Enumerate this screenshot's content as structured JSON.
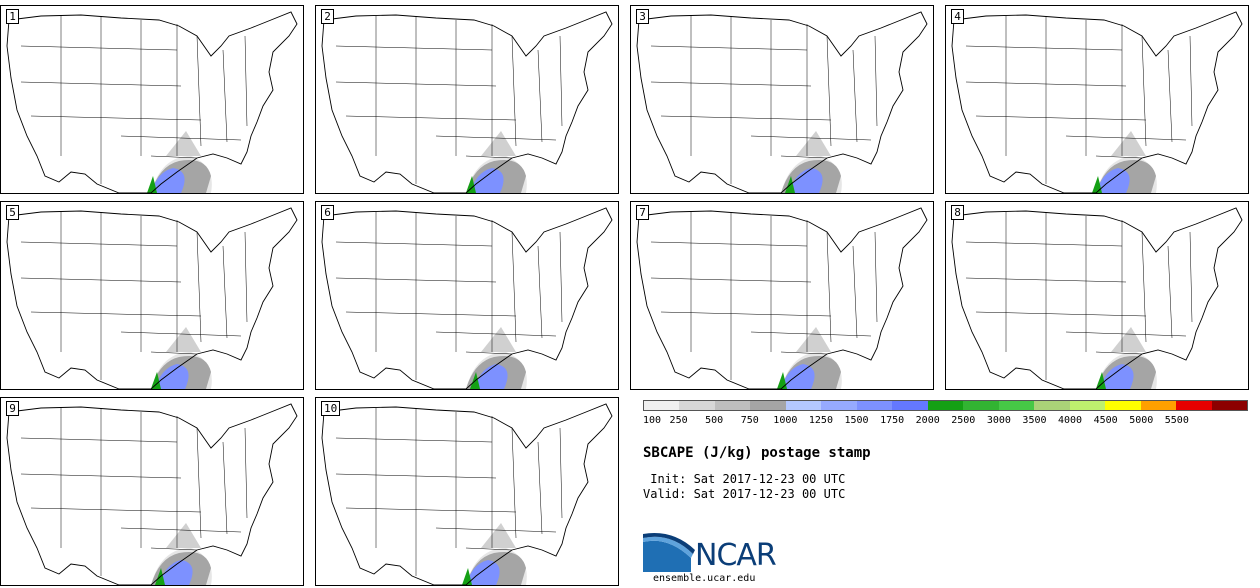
{
  "panels": [
    {
      "label": "1"
    },
    {
      "label": "2"
    },
    {
      "label": "3"
    },
    {
      "label": "4"
    },
    {
      "label": "5"
    },
    {
      "label": "6"
    },
    {
      "label": "7"
    },
    {
      "label": "8"
    },
    {
      "label": "9"
    },
    {
      "label": "10"
    }
  ],
  "legend": {
    "colors": [
      "#f0f0f0",
      "#d7d7d7",
      "#bebebe",
      "#a5a5a5",
      "#b4c8ff",
      "#96aaff",
      "#7d91ff",
      "#6478ff",
      "#14a014",
      "#32b432",
      "#46c846",
      "#aad278",
      "#bef06e",
      "#ffff00",
      "#ffa000",
      "#e60000",
      "#8c0000"
    ],
    "ticks": [
      "100",
      "250",
      "500",
      "750",
      "1000",
      "1250",
      "1500",
      "1750",
      "2000",
      "2500",
      "3000",
      "3500",
      "4000",
      "4500",
      "5000",
      "5500"
    ]
  },
  "title": "SBCAPE (J/kg) postage stamp",
  "init_line": " Init: Sat 2017-12-23 00 UTC",
  "valid_line": "Valid: Sat 2017-12-23 00 UTC",
  "logo_text": "NCAR",
  "site": "ensemble.ucar.edu"
}
